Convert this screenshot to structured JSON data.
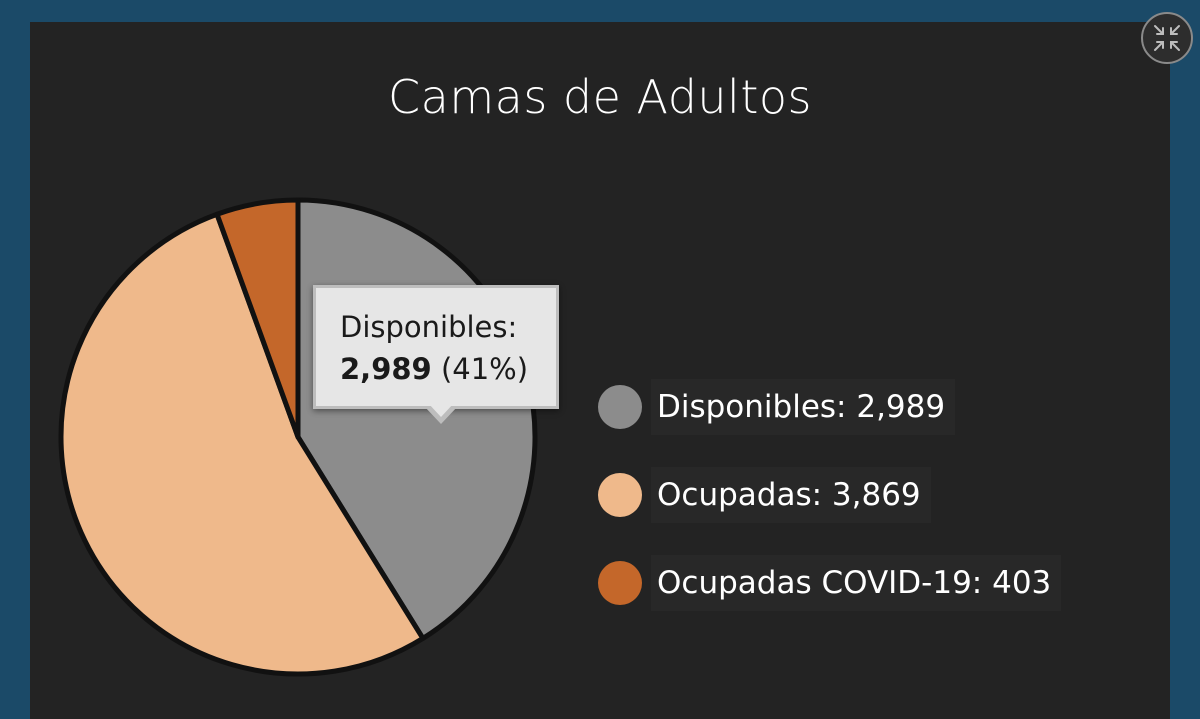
{
  "chart_data": {
    "type": "pie",
    "title": "Camas de Adultos",
    "slices": [
      {
        "label": "Disponibles",
        "value": 2989,
        "display_value": "2,989",
        "color": "#8c8c8c"
      },
      {
        "label": "Ocupadas",
        "value": 3869,
        "display_value": "3,869",
        "color": "#efb98b"
      },
      {
        "label": "Ocupadas COVID-19",
        "value": 403,
        "display_value": "403",
        "color": "#c4672a"
      }
    ],
    "legend_placement": "right"
  },
  "legend": [
    {
      "text": "Disponibles:  2,989"
    },
    {
      "text": "Ocupadas:  3,869"
    },
    {
      "text": "Ocupadas COVID-19:  403"
    }
  ],
  "tooltip": {
    "label": "Disponibles:",
    "value": "2,989",
    "percent": "(41%)"
  },
  "colors": {
    "page_bg": "#1b4a68",
    "panel_bg": "#232323",
    "slice_border": "#111111"
  },
  "icons": {
    "collapse": "collapse-arrows-icon"
  }
}
